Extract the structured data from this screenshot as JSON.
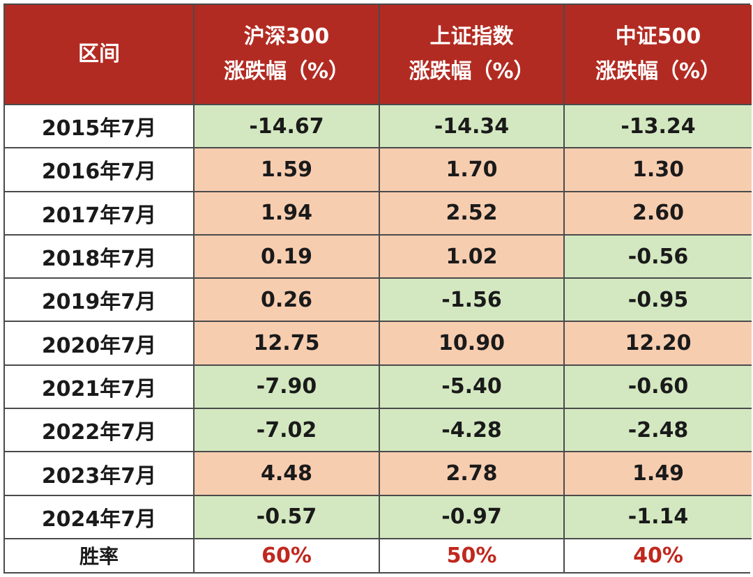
{
  "headers": [
    {
      "line1": "区间",
      "line2": ""
    },
    {
      "line1": "沪深300",
      "line2": "涨跌幅（%）"
    },
    {
      "line1": "上证指数",
      "line2": "涨跌幅（%）"
    },
    {
      "line1": "中证500",
      "line2": "涨跌幅（%）"
    }
  ],
  "rows": [
    {
      "period": "2015年7月",
      "hs300": "-14.67",
      "sh": "-14.34",
      "zz500": "-13.24"
    },
    {
      "period": "2016年7月",
      "hs300": "1.59",
      "sh": "1.70",
      "zz500": "1.30"
    },
    {
      "period": "2017年7月",
      "hs300": "1.94",
      "sh": "2.52",
      "zz500": "2.60"
    },
    {
      "period": "2018年7月",
      "hs300": "0.19",
      "sh": "1.02",
      "zz500": "-0.56"
    },
    {
      "period": "2019年7月",
      "hs300": "0.26",
      "sh": "-1.56",
      "zz500": "-0.95"
    },
    {
      "period": "2020年7月",
      "hs300": "12.75",
      "sh": "10.90",
      "zz500": "12.20"
    },
    {
      "period": "2021年7月",
      "hs300": "-7.90",
      "sh": "-5.40",
      "zz500": "-0.60"
    },
    {
      "period": "2022年7月",
      "hs300": "-7.02",
      "sh": "-4.28",
      "zz500": "-2.48"
    },
    {
      "period": "2023年7月",
      "hs300": "4.48",
      "sh": "2.78",
      "zz500": "1.49"
    },
    {
      "period": "2024年7月",
      "hs300": "-0.57",
      "sh": "-0.97",
      "zz500": "-1.14"
    }
  ],
  "summary": {
    "label": "胜率",
    "hs300": "60%",
    "sh": "50%",
    "zz500": "40%"
  },
  "colors": {
    "header_bg": "#b22b22",
    "positive_bg": "#f7cdb0",
    "negative_bg": "#d3e8c0",
    "rate_text": "#c0281e"
  }
}
